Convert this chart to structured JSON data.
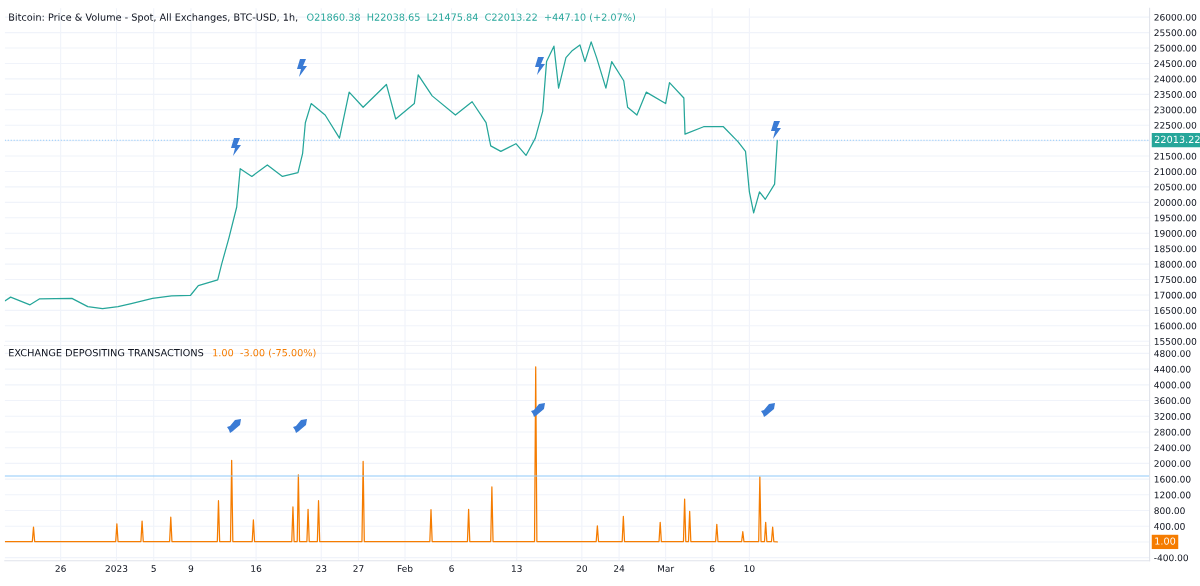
{
  "chart_data": [
    {
      "type": "line",
      "title": "Bitcoin: Price & Volume - Spot, All Exchanges, BTC-USD, 1h,",
      "subtitle": "O21860.38  H22038.65  L21475.84  C22013.22  +447.10 (+2.07%)",
      "x": [
        "2022-12-20T01:00",
        "2022-12-20T15:00",
        "2022-12-22T17:00",
        "2022-12-23T17:00",
        "2022-12-27T05:00",
        "2022-12-28T22:00",
        "2022-12-30T12:00",
        "2023-01-01T04:00",
        "2023-01-02T14:00",
        "2023-01-04T21:00",
        "2023-01-06T22:00",
        "2023-01-08T23:00",
        "2023-01-09T19:00",
        "2023-01-11T21:00",
        "2023-01-12T07:00",
        "2023-01-13T02:00",
        "2023-01-13T22:00",
        "2023-01-14T07:00",
        "2023-01-15T13:00",
        "2023-01-17T05:00",
        "2023-01-18T20:00",
        "2023-01-20T12:00",
        "2023-01-21T00:00",
        "2023-01-21T07:00",
        "2023-01-21T22:00",
        "2023-01-23T10:00",
        "2023-01-24T23:00",
        "2023-01-26T00:00",
        "2023-01-27T12:00",
        "2023-01-30T00:00",
        "2023-01-31T00:00",
        "2023-02-02T00:00",
        "2023-02-02T10:00",
        "2023-02-03T22:00",
        "2023-02-06T10:00",
        "2023-02-08T05:00",
        "2023-02-09T17:00",
        "2023-02-10T05:00",
        "2023-02-11T07:00",
        "2023-02-12T22:00",
        "2023-02-14T00:00",
        "2023-02-15T00:00",
        "2023-02-15T19:00",
        "2023-02-16T05:00",
        "2023-02-17T00:00",
        "2023-02-17T12:00",
        "2023-02-18T07:00",
        "2023-02-18T22:00",
        "2023-02-19T19:00",
        "2023-02-20T08:00",
        "2023-02-21T00:00",
        "2023-02-21T14:00",
        "2023-02-22T14:00",
        "2023-02-23T05:00",
        "2023-02-24T12:00",
        "2023-02-24T22:00",
        "2023-02-25T22:00",
        "2023-02-26T22:00",
        "2023-03-01T00:00",
        "2023-03-01T10:00",
        "2023-03-02T23:00",
        "2023-03-03T02:00",
        "2023-03-05T02:00",
        "2023-03-07T05:00",
        "2023-03-08T19:00",
        "2023-03-09T14:00",
        "2023-03-10T00:00",
        "2023-03-10T11:00",
        "2023-03-11T02:00",
        "2023-03-11T17:00",
        "2023-03-12T17:00",
        "2023-03-13T00:00"
      ],
      "series": [
        {
          "color": "#26a69a",
          "values": [
            16810,
            16930,
            16680,
            16870,
            16890,
            16620,
            16560,
            16620,
            16720,
            16890,
            16970,
            16990,
            17300,
            17490,
            17990,
            18850,
            19850,
            21090,
            20840,
            21210,
            20840,
            20960,
            21590,
            22580,
            23200,
            22830,
            22080,
            23570,
            23080,
            23820,
            22700,
            23200,
            24130,
            23450,
            22830,
            23260,
            22580,
            21830,
            21650,
            21900,
            21520,
            22080,
            22950,
            24560,
            25060,
            23700,
            24690,
            24900,
            25100,
            24560,
            25200,
            24690,
            23700,
            24560,
            23940,
            23080,
            22830,
            23570,
            23200,
            23880,
            23380,
            22210,
            22450,
            22450,
            21960,
            21650,
            20340,
            19660,
            20340,
            20100,
            20590,
            22010
          ]
        }
      ],
      "xlim": [
        "2022-12-20T00:00",
        "2023-04-22T00:00"
      ],
      "xticks": [
        {
          "value": "2022-12-26",
          "label": null
        },
        {
          "value": "2023-01-01",
          "label": null
        },
        {
          "value": "2023-01-05",
          "label": null
        },
        {
          "value": "2023-01-09",
          "label": null
        },
        {
          "value": "2023-01-16",
          "label": null
        },
        {
          "value": "2023-01-23",
          "label": null
        },
        {
          "value": "2023-01-27",
          "label": null
        },
        {
          "value": "2023-02-01",
          "label": null
        },
        {
          "value": "2023-02-06",
          "label": null
        },
        {
          "value": "2023-02-13",
          "label": null
        },
        {
          "value": "2023-02-20",
          "label": null
        },
        {
          "value": "2023-02-24",
          "label": null
        },
        {
          "value": "2023-03-01",
          "label": null
        },
        {
          "value": "2023-03-06",
          "label": null
        },
        {
          "value": "2023-03-10",
          "label": null
        }
      ],
      "ylim": [
        15360,
        26290
      ],
      "yticks": [
        {
          "value": 15500,
          "label": "15500.00"
        },
        {
          "value": 16000,
          "label": "16000.00"
        },
        {
          "value": 16500,
          "label": "16500.00"
        },
        {
          "value": 17000,
          "label": "17000.00"
        },
        {
          "value": 17500,
          "label": "17500.00"
        },
        {
          "value": 18000,
          "label": "18000.00"
        },
        {
          "value": 18500,
          "label": "18500.00"
        },
        {
          "value": 19000,
          "label": "19000.00"
        },
        {
          "value": 19500,
          "label": "19500.00"
        },
        {
          "value": 20000,
          "label": "20000.00"
        },
        {
          "value": 20500,
          "label": "20500.00"
        },
        {
          "value": 21000,
          "label": "21000.00"
        },
        {
          "value": 21500,
          "label": "21500.00"
        },
        {
          "value": 22000,
          "label": null
        },
        {
          "value": 22500,
          "label": "22500.00"
        },
        {
          "value": 23000,
          "label": "23000.00"
        },
        {
          "value": 23500,
          "label": "23500.00"
        },
        {
          "value": 24000,
          "label": "24000.00"
        },
        {
          "value": 24500,
          "label": "24500.00"
        },
        {
          "value": 25000,
          "label": "25000.00"
        },
        {
          "value": 25500,
          "label": "25500.00"
        },
        {
          "value": 26000,
          "label": "26000.00"
        }
      ],
      "tick_labels": "y",
      "grid": true,
      "ref_lines": [
        {
          "axis": "y",
          "value": 22013.22,
          "label": "22013.22",
          "color": "#90caf9",
          "line_style": "dotted"
        }
      ]
    },
    {
      "type": "line",
      "title": "EXCHANGE DEPOSITING TRANSACTIONS",
      "subtitle": "1.00  -3.00 (-75.00%)",
      "x": [
        "2022-12-20T01:00",
        "2022-12-22T23:00",
        "2022-12-23T02:00",
        "2022-12-23T05:00",
        "2022-12-31T22:00",
        "2023-01-01T01:00",
        "2023-01-01T04:00",
        "2023-01-03T15:00",
        "2023-01-03T18:00",
        "2023-01-03T21:00",
        "2023-01-06T17:00",
        "2023-01-06T20:00",
        "2023-01-06T23:00",
        "2023-01-11T20:00",
        "2023-01-11T23:00",
        "2023-01-12T02:00",
        "2023-01-13T06:00",
        "2023-01-13T09:00",
        "2023-01-13T12:00",
        "2023-01-15T14:00",
        "2023-01-15T17:00",
        "2023-01-15T20:00",
        "2023-01-19T20:00",
        "2023-01-19T23:00",
        "2023-01-20T02:00",
        "2023-01-20T10:00",
        "2023-01-20T13:00",
        "2023-01-20T16:00",
        "2023-01-21T11:00",
        "2023-01-21T14:00",
        "2023-01-21T17:00",
        "2023-01-22T14:00",
        "2023-01-22T17:00",
        "2023-01-22T20:00",
        "2023-01-27T09:00",
        "2023-01-27T12:00",
        "2023-01-27T15:00",
        "2023-02-03T16:00",
        "2023-02-03T19:00",
        "2023-02-03T22:00",
        "2023-02-07T17:00",
        "2023-02-07T20:00",
        "2023-02-07T23:00",
        "2023-02-10T05:00",
        "2023-02-10T08:00",
        "2023-02-10T11:00",
        "2023-02-14T22:00",
        "2023-02-15T01:00",
        "2023-02-15T04:00",
        "2023-02-21T13:00",
        "2023-02-21T16:00",
        "2023-02-21T19:00",
        "2023-02-24T08:00",
        "2023-02-24T11:00",
        "2023-02-24T14:00",
        "2023-02-28T07:00",
        "2023-02-28T10:00",
        "2023-02-28T13:00",
        "2023-03-02T22:00",
        "2023-03-03T01:00",
        "2023-03-03T04:00",
        "2023-03-03T11:00",
        "2023-03-03T14:00",
        "2023-03-03T17:00",
        "2023-03-06T09:00",
        "2023-03-06T12:00",
        "2023-03-06T15:00",
        "2023-03-09T04:00",
        "2023-03-09T07:00",
        "2023-03-09T10:00",
        "2023-03-11T00:00",
        "2023-03-11T03:00",
        "2023-03-11T06:00",
        "2023-03-11T15:00",
        "2023-03-11T18:00",
        "2023-03-11T21:00",
        "2023-03-12T09:00",
        "2023-03-12T12:00",
        "2023-03-12T15:00",
        "2023-03-13T00:00"
      ],
      "series": [
        {
          "color": "#f57c00",
          "values": [
            10,
            10,
            380,
            10,
            10,
            460,
            10,
            10,
            530,
            10,
            10,
            630,
            10,
            10,
            1050,
            10,
            10,
            2080,
            10,
            10,
            560,
            10,
            10,
            890,
            10,
            10,
            1710,
            10,
            10,
            830,
            10,
            10,
            1050,
            10,
            10,
            2050,
            10,
            10,
            820,
            10,
            10,
            830,
            10,
            10,
            1400,
            10,
            10,
            4460,
            10,
            10,
            410,
            10,
            10,
            650,
            10,
            10,
            500,
            10,
            10,
            1090,
            10,
            10,
            780,
            10,
            10,
            450,
            10,
            10,
            260,
            10,
            10,
            1660,
            10,
            10,
            500,
            10,
            10,
            380,
            10,
            0
          ]
        }
      ],
      "xlim": [
        "2022-12-20T00:00",
        "2023-04-22T00:00"
      ],
      "xticks": [
        {
          "value": "2022-12-26",
          "label": "26"
        },
        {
          "value": "2023-01-01",
          "label": "2023"
        },
        {
          "value": "2023-01-05",
          "label": "5"
        },
        {
          "value": "2023-01-09",
          "label": "9"
        },
        {
          "value": "2023-01-16",
          "label": "16"
        },
        {
          "value": "2023-01-23",
          "label": "23"
        },
        {
          "value": "2023-01-27",
          "label": "27"
        },
        {
          "value": "2023-02-01",
          "label": "Feb"
        },
        {
          "value": "2023-02-06",
          "label": "6"
        },
        {
          "value": "2023-02-13",
          "label": "13"
        },
        {
          "value": "2023-02-20",
          "label": "20"
        },
        {
          "value": "2023-02-24",
          "label": "24"
        },
        {
          "value": "2023-03-01",
          "label": "Mar"
        },
        {
          "value": "2023-03-06",
          "label": "6"
        },
        {
          "value": "2023-03-10",
          "label": "10"
        }
      ],
      "ylim": [
        -480,
        5000
      ],
      "yticks": [
        {
          "value": -400,
          "label": "-400.00"
        },
        {
          "value": 0,
          "label": null
        },
        {
          "value": 400,
          "label": "400.00"
        },
        {
          "value": 800,
          "label": "800.00"
        },
        {
          "value": 1200,
          "label": "1200.00"
        },
        {
          "value": 1600,
          "label": "1600.00"
        },
        {
          "value": 2000,
          "label": "2000.00"
        },
        {
          "value": 2400,
          "label": "2400.00"
        },
        {
          "value": 2800,
          "label": "2800.00"
        },
        {
          "value": 3200,
          "label": "3200.00"
        },
        {
          "value": 3600,
          "label": "3600.00"
        },
        {
          "value": 4000,
          "label": "4000.00"
        },
        {
          "value": 4400,
          "label": "4400.00"
        },
        {
          "value": 4800,
          "label": "4800.00"
        }
      ],
      "grid": true,
      "ref_lines": [
        {
          "axis": "y",
          "value": 1680,
          "color": "#90caf9",
          "line_style": "solid"
        }
      ],
      "annotations": [
        {
          "text": "1.00",
          "y": 1
        }
      ]
    }
  ]
}
